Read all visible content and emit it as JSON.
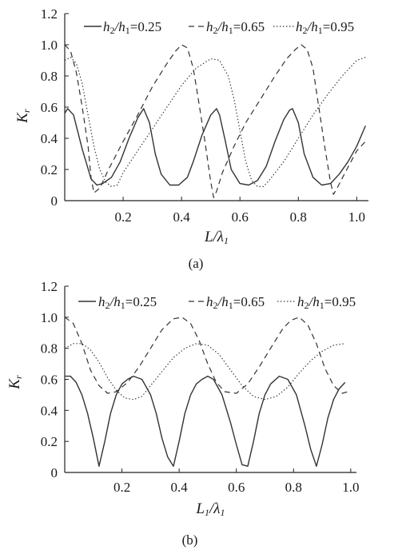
{
  "chart_data": [
    {
      "type": "line",
      "panel_caption": "(a)",
      "ylabel": {
        "main": "K",
        "sub": "r"
      },
      "xlabel": {
        "main": "L/λ",
        "sub": "1"
      },
      "xlim": [
        0.0,
        1.04
      ],
      "ylim": [
        0.0,
        1.2
      ],
      "yticks": [
        "0",
        "0.2",
        "0.4",
        "0.6",
        "0.8",
        "1.0",
        "1.2"
      ],
      "xticks": [
        "0.2",
        "0.4",
        "0.6",
        "0.8",
        "1.0"
      ],
      "grid": false,
      "legend_position": "top",
      "series": [
        {
          "name": "h2/h1=0.25",
          "legend": [
            "h",
            "2",
            "/h",
            "1",
            "=0.25"
          ],
          "style": "solid",
          "x": [
            0.0,
            0.01,
            0.03,
            0.06,
            0.09,
            0.11,
            0.13,
            0.16,
            0.19,
            0.22,
            0.25,
            0.27,
            0.29,
            0.31,
            0.33,
            0.36,
            0.39,
            0.42,
            0.44,
            0.47,
            0.5,
            0.52,
            0.53,
            0.55,
            0.57,
            0.6,
            0.63,
            0.66,
            0.69,
            0.72,
            0.75,
            0.77,
            0.78,
            0.8,
            0.82,
            0.85,
            0.88,
            0.91,
            0.94,
            0.97,
            1.0,
            1.03
          ],
          "y": [
            0.56,
            0.59,
            0.55,
            0.33,
            0.14,
            0.1,
            0.11,
            0.15,
            0.25,
            0.4,
            0.53,
            0.59,
            0.5,
            0.3,
            0.17,
            0.1,
            0.1,
            0.15,
            0.25,
            0.42,
            0.55,
            0.59,
            0.55,
            0.38,
            0.2,
            0.11,
            0.1,
            0.13,
            0.22,
            0.38,
            0.52,
            0.58,
            0.59,
            0.5,
            0.3,
            0.15,
            0.1,
            0.11,
            0.17,
            0.25,
            0.35,
            0.48
          ]
        },
        {
          "name": "h2/h1=0.65",
          "legend": [
            "h",
            "2",
            "/h",
            "1",
            "=0.65"
          ],
          "style": "dashed",
          "x": [
            0.0,
            0.02,
            0.04,
            0.06,
            0.08,
            0.09,
            0.1,
            0.12,
            0.15,
            0.2,
            0.25,
            0.3,
            0.35,
            0.38,
            0.4,
            0.42,
            0.44,
            0.46,
            0.48,
            0.5,
            0.51,
            0.52,
            0.54,
            0.58,
            0.62,
            0.67,
            0.72,
            0.76,
            0.79,
            0.81,
            0.83,
            0.85,
            0.87,
            0.89,
            0.91,
            0.92,
            0.93,
            0.96,
            1.0,
            1.03
          ],
          "y": [
            1.0,
            0.96,
            0.82,
            0.6,
            0.35,
            0.15,
            0.05,
            0.08,
            0.2,
            0.38,
            0.55,
            0.73,
            0.88,
            0.96,
            1.0,
            0.98,
            0.85,
            0.62,
            0.38,
            0.12,
            0.02,
            0.06,
            0.18,
            0.35,
            0.5,
            0.65,
            0.8,
            0.91,
            0.97,
            1.0,
            0.97,
            0.85,
            0.6,
            0.35,
            0.12,
            0.04,
            0.07,
            0.18,
            0.32,
            0.38
          ]
        },
        {
          "name": "h2/h1=0.95",
          "legend": [
            "h",
            "2",
            "/h",
            "1",
            "=0.95"
          ],
          "style": "dotted",
          "x": [
            0.0,
            0.02,
            0.04,
            0.06,
            0.08,
            0.1,
            0.12,
            0.14,
            0.16,
            0.18,
            0.2,
            0.25,
            0.3,
            0.35,
            0.4,
            0.45,
            0.5,
            0.53,
            0.56,
            0.58,
            0.6,
            0.62,
            0.64,
            0.66,
            0.68,
            0.7,
            0.75,
            0.8,
            0.85,
            0.9,
            0.95,
            1.0,
            1.03
          ],
          "y": [
            0.9,
            0.92,
            0.88,
            0.75,
            0.55,
            0.35,
            0.2,
            0.12,
            0.09,
            0.1,
            0.18,
            0.32,
            0.46,
            0.6,
            0.74,
            0.85,
            0.91,
            0.9,
            0.8,
            0.65,
            0.45,
            0.25,
            0.13,
            0.09,
            0.09,
            0.13,
            0.25,
            0.4,
            0.55,
            0.68,
            0.8,
            0.9,
            0.92
          ]
        }
      ]
    },
    {
      "type": "line",
      "panel_caption": "(b)",
      "ylabel": {
        "main": "K",
        "sub": "r"
      },
      "xlabel": {
        "main": "L",
        "mainsub": "1",
        "mid": "/λ",
        "sub": "1"
      },
      "xlim": [
        0.0,
        1.02
      ],
      "ylim": [
        0.0,
        1.2
      ],
      "yticks": [
        "0",
        "0.2",
        "0.4",
        "0.6",
        "0.8",
        "1.0",
        "1.2"
      ],
      "xticks": [
        "0.2",
        "0.4",
        "0.6",
        "0.8",
        "1.0"
      ],
      "grid": false,
      "legend_position": "top",
      "series": [
        {
          "name": "h2/h1=0.25",
          "legend": [
            "h",
            "2",
            "/h",
            "1",
            "=0.25"
          ],
          "style": "solid",
          "x": [
            0.0,
            0.02,
            0.04,
            0.06,
            0.08,
            0.1,
            0.12,
            0.14,
            0.16,
            0.18,
            0.2,
            0.22,
            0.24,
            0.27,
            0.3,
            0.32,
            0.34,
            0.36,
            0.38,
            0.4,
            0.42,
            0.44,
            0.46,
            0.48,
            0.5,
            0.52,
            0.55,
            0.58,
            0.6,
            0.62,
            0.64,
            0.66,
            0.68,
            0.7,
            0.72,
            0.75,
            0.78,
            0.81,
            0.84,
            0.86,
            0.88,
            0.9,
            0.92,
            0.94,
            0.96,
            0.98
          ],
          "y": [
            0.62,
            0.62,
            0.58,
            0.5,
            0.38,
            0.22,
            0.04,
            0.2,
            0.38,
            0.5,
            0.57,
            0.6,
            0.62,
            0.6,
            0.5,
            0.38,
            0.22,
            0.1,
            0.04,
            0.2,
            0.38,
            0.5,
            0.57,
            0.6,
            0.62,
            0.6,
            0.5,
            0.32,
            0.18,
            0.05,
            0.04,
            0.2,
            0.38,
            0.5,
            0.57,
            0.62,
            0.6,
            0.5,
            0.3,
            0.15,
            0.04,
            0.18,
            0.35,
            0.47,
            0.54,
            0.58
          ]
        },
        {
          "name": "h2/h1=0.65",
          "legend": [
            "h",
            "2",
            "/h",
            "1",
            "=0.65"
          ],
          "style": "dashed",
          "x": [
            0.0,
            0.03,
            0.06,
            0.09,
            0.12,
            0.15,
            0.18,
            0.22,
            0.26,
            0.3,
            0.34,
            0.38,
            0.41,
            0.44,
            0.47,
            0.5,
            0.53,
            0.56,
            0.6,
            0.64,
            0.68,
            0.72,
            0.76,
            0.79,
            0.82,
            0.85,
            0.88,
            0.91,
            0.94,
            0.97,
            0.99
          ],
          "y": [
            1.0,
            0.96,
            0.83,
            0.66,
            0.56,
            0.51,
            0.52,
            0.58,
            0.68,
            0.8,
            0.92,
            0.99,
            1.0,
            0.96,
            0.85,
            0.7,
            0.58,
            0.52,
            0.51,
            0.57,
            0.68,
            0.8,
            0.92,
            0.98,
            1.0,
            0.95,
            0.83,
            0.67,
            0.56,
            0.51,
            0.52
          ]
        },
        {
          "name": "h2/h1=0.95",
          "legend": [
            "h",
            "2",
            "/h",
            "1",
            "=0.95"
          ],
          "style": "dotted",
          "x": [
            0.0,
            0.03,
            0.06,
            0.09,
            0.12,
            0.15,
            0.18,
            0.21,
            0.24,
            0.27,
            0.3,
            0.34,
            0.38,
            0.42,
            0.46,
            0.5,
            0.54,
            0.58,
            0.62,
            0.66,
            0.7,
            0.74,
            0.78,
            0.82,
            0.86,
            0.9,
            0.94,
            0.98
          ],
          "y": [
            0.8,
            0.83,
            0.83,
            0.79,
            0.71,
            0.61,
            0.53,
            0.48,
            0.47,
            0.49,
            0.56,
            0.65,
            0.74,
            0.8,
            0.83,
            0.82,
            0.76,
            0.66,
            0.56,
            0.49,
            0.47,
            0.49,
            0.55,
            0.64,
            0.72,
            0.78,
            0.82,
            0.83
          ]
        }
      ]
    }
  ]
}
